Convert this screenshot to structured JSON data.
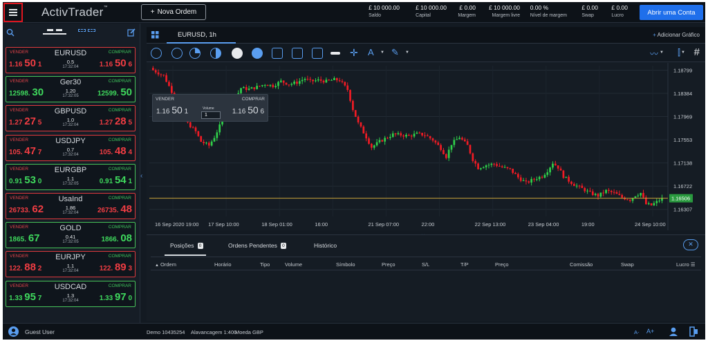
{
  "app": {
    "brand": "ActivTrader",
    "brand_tm": "™",
    "new_order_label": "Nova Ordem",
    "real_account_label": "Abrir uma Conta"
  },
  "account_stats": [
    {
      "value": "£ 10 000.00",
      "label": "Saldo"
    },
    {
      "value": "£ 10 000.00",
      "label": "Capital"
    },
    {
      "value": "£ 0.00",
      "label": "Margem"
    },
    {
      "value": "£ 10 000.00",
      "label": "Margem livre"
    },
    {
      "value": "0.00 %",
      "label": "Nível de margem"
    },
    {
      "value": "£ 0.00",
      "label": "Swap"
    },
    {
      "value": "£ 0.00",
      "label": "Lucro"
    }
  ],
  "instruments": [
    {
      "sell_label": "VENDER",
      "buy_label": "COMPRAR",
      "symbol": "EURUSD",
      "spread": "0.5",
      "time": "17:32:04",
      "sell_pre": "1.16",
      "sell_big": "50",
      "sell_post": "1",
      "buy_pre": "1.16",
      "buy_big": "50",
      "buy_post": "6",
      "trend": "red"
    },
    {
      "sell_label": "VENDER",
      "buy_label": "COMPRAR",
      "symbol": "Ger30",
      "spread": "1.20",
      "time": "17:32:05",
      "sell_pre": "12598.",
      "sell_big": "30",
      "sell_post": "",
      "buy_pre": "12599.",
      "buy_big": "50",
      "buy_post": "",
      "trend": "green"
    },
    {
      "sell_label": "VENDER",
      "buy_label": "COMPRAR",
      "symbol": "GBPUSD",
      "spread": "1.0",
      "time": "17:32:04",
      "sell_pre": "1.27",
      "sell_big": "27",
      "sell_post": "5",
      "buy_pre": "1.27",
      "buy_big": "28",
      "buy_post": "5",
      "trend": "red"
    },
    {
      "sell_label": "VENDER",
      "buy_label": "COMPRAR",
      "symbol": "USDJPY",
      "spread": "0.7",
      "time": "17:32:04",
      "sell_pre": "105.",
      "sell_big": "47",
      "sell_post": "7",
      "buy_pre": "105.",
      "buy_big": "48",
      "buy_post": "4",
      "trend": "red"
    },
    {
      "sell_label": "VENDER",
      "buy_label": "COMPRAR",
      "symbol": "EURGBP",
      "spread": "1.1",
      "time": "17:32:05",
      "sell_pre": "0.91",
      "sell_big": "53",
      "sell_post": "0",
      "buy_pre": "0.91",
      "buy_big": "54",
      "buy_post": "1",
      "trend": "green"
    },
    {
      "sell_label": "VENDER",
      "buy_label": "COMPRAR",
      "symbol": "UsaInd",
      "spread": "1.86",
      "time": "17:32:04",
      "sell_pre": "26733.",
      "sell_big": "62",
      "sell_post": "",
      "buy_pre": "26735.",
      "buy_big": "48",
      "buy_post": "",
      "trend": "red"
    },
    {
      "sell_label": "VENDER",
      "buy_label": "COMPRAR",
      "symbol": "GOLD",
      "spread": "0.41",
      "time": "17:32:05",
      "sell_pre": "1865.",
      "sell_big": "67",
      "sell_post": "",
      "buy_pre": "1866.",
      "buy_big": "08",
      "buy_post": "",
      "trend": "green"
    },
    {
      "sell_label": "VENDER",
      "buy_label": "COMPRAR",
      "symbol": "EURJPY",
      "spread": "1.1",
      "time": "17:32:04",
      "sell_pre": "122.",
      "sell_big": "88",
      "sell_post": "2",
      "buy_pre": "122.",
      "buy_big": "89",
      "buy_post": "3",
      "trend": "red"
    },
    {
      "sell_label": "VENDER",
      "buy_label": "COMPRAR",
      "symbol": "USDCAD",
      "spread": "1.3",
      "time": "17:32:04",
      "sell_pre": "1.33",
      "sell_big": "95",
      "sell_post": "7",
      "buy_pre": "1.33",
      "buy_big": "97",
      "buy_post": "0",
      "trend": "green"
    }
  ],
  "chart_tab": {
    "title": "EURUSD, 1h",
    "add_chart_label": "Adicionar Gráfico"
  },
  "trade_widget": {
    "sell_label": "VENDER",
    "buy_label": "COMPRAR",
    "volume_label": "Volume",
    "volume_value": "1",
    "sell_pre": "1.16",
    "sell_big": "50",
    "sell_post": "1",
    "buy_pre": "1.16",
    "buy_big": "50",
    "buy_post": "6"
  },
  "chart_data": {
    "type": "candlestick",
    "symbol": "EURUSD",
    "timeframe": "1h",
    "y_ticks": [
      "1.18799",
      "1.18384",
      "1.17969",
      "1.17553",
      "1.17138",
      "1.16722",
      "1.16307"
    ],
    "ylim": [
      1.1618,
      1.1888
    ],
    "current_price": "1.16506",
    "x_ticks": [
      "16 Sep 2020 19:00",
      "17 Sep 10:00",
      "18 Sep 01:00",
      "16:00",
      "21 Sep 07:00",
      "22:00",
      "22 Sep 13:00",
      "23 Sep 04:00",
      "19:00",
      "24 Sep 10:00"
    ],
    "colors": {
      "up": "#2fd14a",
      "down": "#f11b24",
      "price_line": "#c8a23a"
    },
    "close_path": [
      [
        0,
        1.188
      ],
      [
        4,
        1.187
      ],
      [
        7,
        1.1842
      ],
      [
        10,
        1.1808
      ],
      [
        13,
        1.1785
      ],
      [
        16,
        1.177
      ],
      [
        18,
        1.1752
      ],
      [
        21,
        1.1745
      ],
      [
        23,
        1.176
      ],
      [
        26,
        1.179
      ],
      [
        28,
        1.181
      ],
      [
        31,
        1.183
      ],
      [
        33,
        1.1848
      ],
      [
        36,
        1.1846
      ],
      [
        39,
        1.185
      ],
      [
        42,
        1.1855
      ],
      [
        45,
        1.1852
      ],
      [
        48,
        1.186
      ],
      [
        51,
        1.1855
      ],
      [
        54,
        1.1858
      ],
      [
        57,
        1.1865
      ],
      [
        59,
        1.186
      ],
      [
        62,
        1.1862
      ],
      [
        65,
        1.186
      ],
      [
        68,
        1.1863
      ],
      [
        70,
        1.1862
      ],
      [
        73,
        1.1845
      ],
      [
        75,
        1.181
      ],
      [
        77,
        1.1785
      ],
      [
        80,
        1.176
      ],
      [
        82,
        1.1742
      ],
      [
        85,
        1.1752
      ],
      [
        88,
        1.176
      ],
      [
        90,
        1.1765
      ],
      [
        93,
        1.1764
      ],
      [
        96,
        1.1762
      ],
      [
        99,
        1.1766
      ],
      [
        102,
        1.1764
      ],
      [
        105,
        1.1755
      ],
      [
        108,
        1.174
      ],
      [
        110,
        1.1725
      ],
      [
        112,
        1.1748
      ],
      [
        115,
        1.176
      ],
      [
        118,
        1.1745
      ],
      [
        120,
        1.172
      ],
      [
        122,
        1.1705
      ],
      [
        125,
        1.171
      ],
      [
        128,
        1.1712
      ],
      [
        131,
        1.1706
      ],
      [
        134,
        1.1702
      ],
      [
        137,
        1.1688
      ],
      [
        140,
        1.1678
      ],
      [
        143,
        1.1685
      ],
      [
        146,
        1.169
      ],
      [
        148,
        1.17
      ],
      [
        150,
        1.1714
      ],
      [
        152,
        1.1706
      ],
      [
        154,
        1.169
      ],
      [
        156,
        1.1682
      ],
      [
        158,
        1.1675
      ],
      [
        161,
        1.1668
      ],
      [
        164,
        1.166
      ],
      [
        167,
        1.1655
      ],
      [
        170,
        1.1664
      ],
      [
        173,
        1.166
      ],
      [
        176,
        1.1652
      ],
      [
        179,
        1.1648
      ],
      [
        181,
        1.1656
      ],
      [
        183,
        1.166
      ],
      [
        185,
        1.164
      ],
      [
        187,
        1.1638
      ],
      [
        189,
        1.1644
      ],
      [
        191,
        1.165
      ]
    ]
  },
  "positions": {
    "tabs": [
      {
        "label": "Posições",
        "count": "0"
      },
      {
        "label": "Ordens Pendentes",
        "count": "0"
      },
      {
        "label": "Histórico",
        "count": ""
      }
    ],
    "columns": [
      "Ordem",
      "Horário",
      "Tipo",
      "Volume",
      "Símbolo",
      "Preço",
      "S/L",
      "T/P",
      "Preço",
      "Comissão",
      "Swap",
      "Lucro"
    ]
  },
  "status_bar": {
    "user": "Guest User",
    "account": "Demo 10435254",
    "leverage": "Alavancagem 1:400",
    "currency": "Moeda GBP",
    "font_small": "A-",
    "font_large": "A+"
  }
}
